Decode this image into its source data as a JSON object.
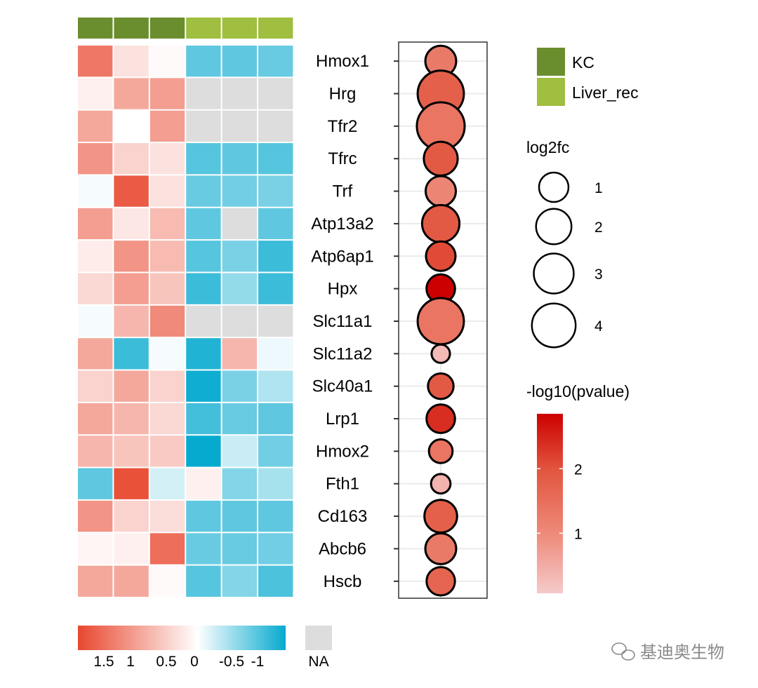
{
  "chart_data": [
    {
      "type": "heatmap",
      "genes": [
        "Hmox1",
        "Hrg",
        "Tfr2",
        "Tfrc",
        "Trf",
        "Atp13a2",
        "Atp6ap1",
        "Hpx",
        "Slc11a1",
        "Slc11a2",
        "Slc40a1",
        "Lrp1",
        "Hmox2",
        "Fth1",
        "Cd163",
        "Abcb6",
        "Hscb"
      ],
      "column_groups": [
        "KC",
        "KC",
        "KC",
        "Liver_rec",
        "Liver_rec",
        "Liver_rec"
      ],
      "values": [
        [
          1.4,
          0.3,
          0.05,
          -0.9,
          -0.9,
          -0.85
        ],
        [
          0.15,
          0.9,
          1.0,
          null,
          null,
          null
        ],
        [
          0.9,
          0.0,
          1.0,
          null,
          null,
          null
        ],
        [
          1.1,
          0.45,
          0.3,
          -0.95,
          -0.9,
          -0.95
        ],
        [
          -0.05,
          1.7,
          0.3,
          -0.85,
          -0.8,
          -0.75
        ],
        [
          1.0,
          0.25,
          0.7,
          -0.9,
          null,
          -0.9
        ],
        [
          0.2,
          1.1,
          0.7,
          -0.95,
          -0.75,
          -1.1
        ],
        [
          0.4,
          1.0,
          0.6,
          -1.1,
          -0.6,
          -1.1
        ],
        [
          -0.05,
          0.75,
          1.2,
          null,
          null,
          null
        ],
        [
          0.9,
          -1.1,
          -0.05,
          -1.25,
          0.75,
          -0.1
        ],
        [
          0.45,
          0.9,
          0.45,
          -1.35,
          -0.75,
          -0.45
        ],
        [
          0.9,
          0.75,
          0.4,
          -1.05,
          -0.85,
          -0.9
        ],
        [
          0.75,
          0.6,
          0.55,
          -1.4,
          -0.3,
          -0.8
        ],
        [
          -0.9,
          1.8,
          -0.25,
          0.15,
          -0.7,
          -0.5
        ],
        [
          1.1,
          0.45,
          0.35,
          -0.9,
          -0.9,
          -0.9
        ],
        [
          0.1,
          0.15,
          1.5,
          -0.85,
          -0.85,
          -0.8
        ],
        [
          0.9,
          0.9,
          0.05,
          -0.95,
          -0.7,
          -1.0
        ]
      ],
      "color_scale": {
        "range": [
          1.9,
          -1.4
        ],
        "high_color": "#E8472E",
        "mid_color": "#FFFFFF",
        "low_color": "#06AACF",
        "na_color": "#DDDDDD",
        "ticks": [
          "1.5",
          "1",
          "0.5",
          "0",
          "-0.5",
          "-1"
        ],
        "tick_values": [
          1.5,
          1,
          0.5,
          0,
          -0.5,
          -1
        ],
        "na_label": "NA"
      },
      "annotation_legend": [
        {
          "label": "KC",
          "color": "#6A8E2E"
        },
        {
          "label": "Liver_rec",
          "color": "#A0BE40"
        }
      ]
    },
    {
      "type": "scatter",
      "genes": [
        "Hmox1",
        "Hrg",
        "Tfr2",
        "Tfrc",
        "Trf",
        "Atp13a2",
        "Atp6ap1",
        "Hpx",
        "Slc11a1",
        "Slc11a2",
        "Slc40a1",
        "Lrp1",
        "Hmox2",
        "Fth1",
        "Cd163",
        "Abcb6",
        "Hscb"
      ],
      "log2fc": [
        1.2,
        4.7,
        5.2,
        1.7,
        1.1,
        2.4,
        1.0,
        0.87,
        4.7,
        0.05,
        0.53,
        0.87,
        0.35,
        0.09,
        1.5,
        1.2,
        0.85
      ],
      "neg_log10_pvalue": [
        1.3,
        1.8,
        1.4,
        1.9,
        1.1,
        1.9,
        2.1,
        2.85,
        1.4,
        0.3,
        1.9,
        2.4,
        1.4,
        0.4,
        1.8,
        1.3,
        1.7
      ],
      "size_legend": {
        "title": "log2fc",
        "values": [
          1,
          2,
          3,
          4
        ],
        "labels": [
          "1",
          "2",
          "3",
          "4"
        ]
      },
      "color_legend": {
        "title": "-log10(pvalue)",
        "range": [
          0.07,
          2.85
        ],
        "ticks": [
          1,
          2
        ],
        "tick_labels": [
          "1",
          "2"
        ],
        "low_color": "#F5CACA",
        "high_color": "#CC0000"
      }
    }
  ],
  "watermark": "基迪奥生物"
}
